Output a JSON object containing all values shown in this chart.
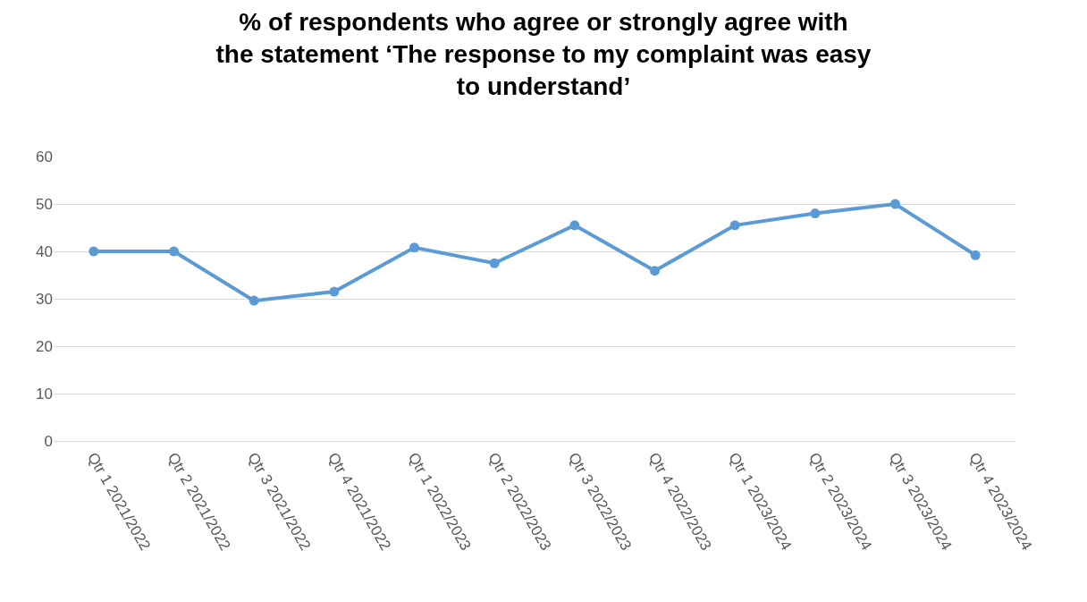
{
  "chart_data": {
    "type": "line",
    "title": "% of respondents who agree or strongly agree with the statement ‘The response to my complaint was easy to understand’",
    "categories": [
      "Qtr 1 2021/2022",
      "Qtr 2 2021/2022",
      "Qtr 3 2021/2022",
      "Qtr 4 2021/2022",
      "Qtr 1 2022/2023",
      "Qtr 2 2022/2023",
      "Qtr 3 2022/2023",
      "Qtr 4 2022/2023",
      "Qtr 1 2023/2024",
      "Qtr 2 2023/2024",
      "Qtr 3 2023/2024",
      "Qtr 4 2023/2024"
    ],
    "series": [
      {
        "color": "#5b9bd5",
        "values": [
          40,
          40,
          29.6,
          31.5,
          40.8,
          37.5,
          45.5,
          35.9,
          45.5,
          48,
          50,
          39.2
        ]
      }
    ],
    "ylim": [
      0,
      60
    ],
    "yticks": [
      0,
      10,
      20,
      30,
      40,
      50,
      60
    ],
    "grid": "y",
    "marker": "circle",
    "line_style": "solid",
    "legend": false
  }
}
